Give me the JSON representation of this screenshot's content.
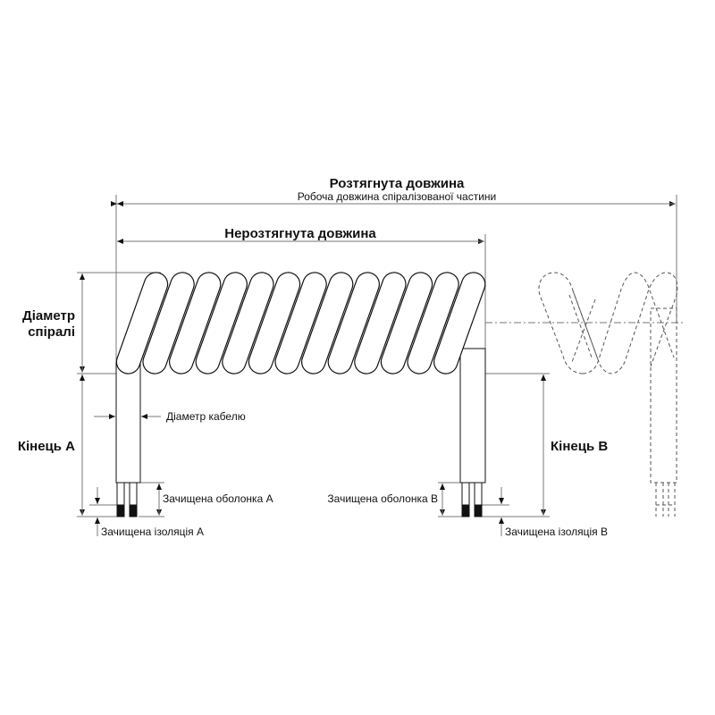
{
  "labels": {
    "stretched_length": "Розтягнута довжина",
    "working_length": "Робоча довжина спіралізованої частини",
    "unstretched_length": "Нерозтягнута довжина",
    "coil_diameter_line1": "Діаметр",
    "coil_diameter_line2": "спіралі",
    "cable_diameter": "Діаметр кабелю",
    "end_a": "Кінець A",
    "end_b": "Кінець B",
    "stripped_sheath_a": "Зачищена оболонка A",
    "stripped_sheath_b": "Зачищена оболонка B",
    "stripped_insulation_a": "Зачищена ізоляція A",
    "stripped_insulation_b": "Зачищена ізоляція B"
  },
  "colors": {
    "line": "#111111",
    "dimension": "#777777",
    "wire_tip": "#111111"
  }
}
